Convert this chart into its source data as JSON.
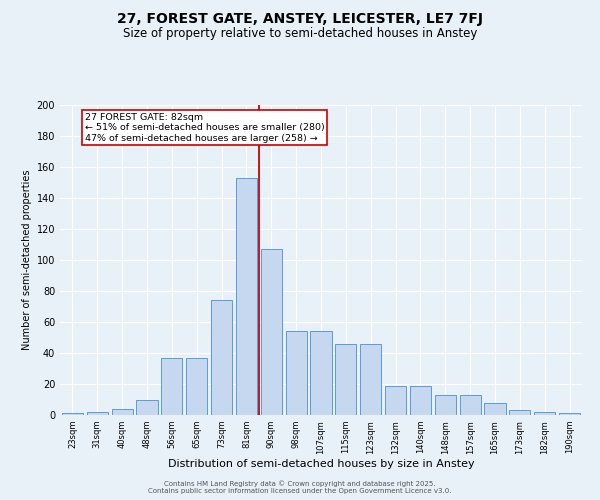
{
  "title": "27, FOREST GATE, ANSTEY, LEICESTER, LE7 7FJ",
  "subtitle": "Size of property relative to semi-detached houses in Anstey",
  "xlabel": "Distribution of semi-detached houses by size in Anstey",
  "ylabel": "Number of semi-detached properties",
  "footer_line1": "Contains HM Land Registry data © Crown copyright and database right 2025.",
  "footer_line2": "Contains public sector information licensed under the Open Government Licence v3.0.",
  "bar_labels": [
    "23sqm",
    "31sqm",
    "40sqm",
    "48sqm",
    "56sqm",
    "65sqm",
    "73sqm",
    "81sqm",
    "90sqm",
    "98sqm",
    "107sqm",
    "115sqm",
    "123sqm",
    "132sqm",
    "140sqm",
    "148sqm",
    "157sqm",
    "165sqm",
    "173sqm",
    "182sqm",
    "190sqm"
  ],
  "bar_values": [
    1,
    2,
    4,
    10,
    37,
    37,
    74,
    153,
    107,
    54,
    54,
    46,
    46,
    19,
    19,
    13,
    13,
    8,
    3,
    2,
    1
  ],
  "bar_color": "#c5d8f0",
  "bar_edge_color": "#5b9bd5",
  "vline_x": 7.5,
  "vline_color": "#cc0000",
  "annotation_title": "27 FOREST GATE: 82sqm",
  "annotation_line1": "← 51% of semi-detached houses are smaller (280)",
  "annotation_line2": "47% of semi-detached houses are larger (258) →",
  "annotation_box_color": "#cc0000",
  "ylim_max": 200,
  "yticks": [
    0,
    20,
    40,
    60,
    80,
    100,
    120,
    140,
    160,
    180,
    200
  ],
  "bg_color": "#e8f0f8",
  "grid_color": "#ffffff",
  "title_fontsize": 10,
  "subtitle_fontsize": 8.5,
  "ylabel_fontsize": 7,
  "xlabel_fontsize": 8,
  "tick_fontsize": 6,
  "ytick_fontsize": 7,
  "ann_fontsize": 6.8,
  "footer_fontsize": 5
}
